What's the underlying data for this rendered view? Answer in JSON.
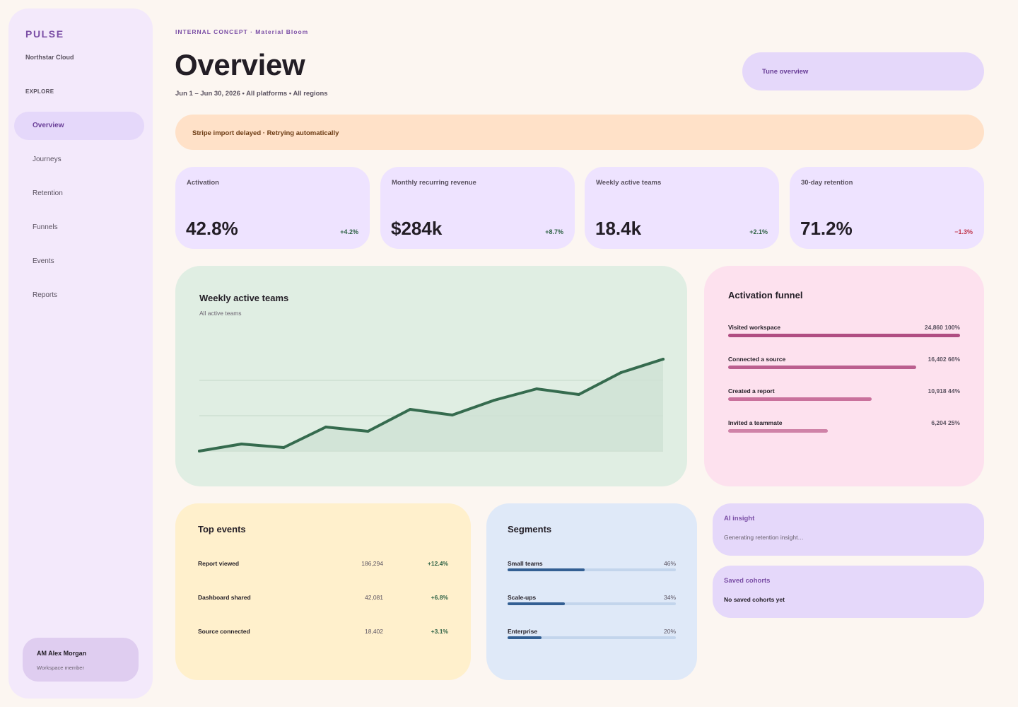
{
  "sidebar": {
    "brand": "PULSE",
    "workspace": "Northstar Cloud",
    "section_label": "EXPLORE",
    "items": [
      {
        "label": "Overview",
        "active": true
      },
      {
        "label": "Journeys"
      },
      {
        "label": "Retention"
      },
      {
        "label": "Funnels"
      },
      {
        "label": "Events"
      },
      {
        "label": "Reports"
      }
    ],
    "user": {
      "name": "AM Alex Morgan",
      "role": "Workspace member"
    }
  },
  "header": {
    "eyebrow": "INTERNAL CONCEPT · Material Bloom",
    "title": "Overview",
    "subtitle": "Jun 1 – Jun 30, 2026 • All platforms • All regions",
    "tune_label": "Tune overview"
  },
  "alert": {
    "text": "Stripe import delayed · Retrying automatically"
  },
  "kpis": [
    {
      "label": "Activation",
      "value": "42.8%",
      "delta": "+4.2%",
      "trend": "up"
    },
    {
      "label": "Monthly recurring revenue",
      "value": "$284k",
      "delta": "+8.7%",
      "trend": "up"
    },
    {
      "label": "Weekly active teams",
      "value": "18.4k",
      "delta": "+2.1%",
      "trend": "up"
    },
    {
      "label": "30-day retention",
      "value": "71.2%",
      "delta": "−1.3%",
      "trend": "down"
    }
  ],
  "weekly_chart": {
    "title": "Weekly active teams",
    "subtitle": "All active teams"
  },
  "chart_data": {
    "type": "area",
    "title": "Weekly active teams",
    "subtitle": "All active teams",
    "x": [
      1,
      2,
      3,
      4,
      5,
      6,
      7,
      8,
      9,
      10,
      11,
      12
    ],
    "values": [
      0,
      10,
      5,
      34,
      28,
      59,
      51,
      72,
      88,
      80,
      111,
      130
    ],
    "ylim": [
      0,
      180
    ],
    "grid": true,
    "line_color": "#356b4e",
    "fill_color": "#cfe2d5"
  },
  "funnel": {
    "title": "Activation funnel",
    "steps": [
      {
        "label": "Visited workspace",
        "value": "24,860 100%",
        "pct": 100,
        "color": "#b04d82"
      },
      {
        "label": "Connected a source",
        "value": "16,402 66%",
        "pct": 81,
        "color": "#bb5f8f"
      },
      {
        "label": "Created a report",
        "value": "10,918 44%",
        "pct": 62,
        "color": "#c9719c"
      },
      {
        "label": "Invited a teammate",
        "value": "6,204 25%",
        "pct": 43,
        "color": "#cf82a7"
      }
    ]
  },
  "top_events": {
    "title": "Top events",
    "rows": [
      {
        "name": "Report viewed",
        "count": "186,294",
        "delta": "+12.4%"
      },
      {
        "name": "Dashboard shared",
        "count": "42,081",
        "delta": "+6.8%"
      },
      {
        "name": "Source connected",
        "count": "18,402",
        "delta": "+3.1%"
      }
    ]
  },
  "segments": {
    "title": "Segments",
    "rows": [
      {
        "label": "Small teams",
        "pct": "46%",
        "value": 46
      },
      {
        "label": "Scale-ups",
        "pct": "34%",
        "value": 34
      },
      {
        "label": "Enterprise",
        "pct": "20%",
        "value": 20
      }
    ]
  },
  "ai_insight": {
    "title": "AI insight",
    "text": "Generating retention insight…"
  },
  "saved_cohorts": {
    "title": "Saved cohorts",
    "text": "No saved cohorts yet"
  },
  "colors": {
    "accent": "#7b4fa6",
    "positive": "#2f6245",
    "negative": "#c0384e",
    "alert_bg": "#ffe1c8"
  }
}
